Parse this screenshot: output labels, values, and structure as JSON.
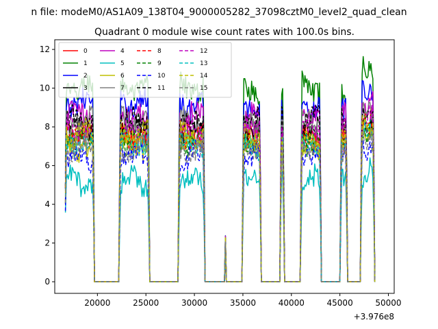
{
  "figure": {
    "suptitle": "n file: modeM0/AS1A09_138T04_9000005282_37098cztM0_level2_quad_clean",
    "title": "Quadrant 0 module wise count rates with 100.0s bins."
  },
  "chart_data": {
    "type": "line",
    "title": "Quadrant 0 module wise count rates with 100.0s bins.",
    "xlabel": "",
    "ylabel": "",
    "x_offset_label": "+3.976e8",
    "xlim": [
      15600,
      50600
    ],
    "ylim": [
      -0.6,
      12.5
    ],
    "xticks": [
      20000,
      25000,
      30000,
      35000,
      40000,
      45000,
      50000
    ],
    "yticks": [
      0,
      2,
      4,
      6,
      8,
      10,
      12
    ],
    "grid": false,
    "legend_position": "top-left",
    "legend_columns": 4,
    "segments": [
      [
        16700,
        19600
      ],
      [
        22300,
        25300
      ],
      [
        28400,
        31000
      ],
      [
        35000,
        36800
      ],
      [
        38900,
        39200
      ],
      [
        41000,
        43000
      ],
      [
        45100,
        45700
      ],
      [
        47200,
        48500
      ]
    ],
    "spike": {
      "x": 33200,
      "mean": 2.2
    },
    "series": [
      {
        "name": "0",
        "color": "#ff0000",
        "dash": "solid",
        "mean": 7.6
      },
      {
        "name": "1",
        "color": "#008000",
        "dash": "solid",
        "mean": 10.0
      },
      {
        "name": "2",
        "color": "#0000ff",
        "dash": "solid",
        "mean": 9.2
      },
      {
        "name": "3",
        "color": "#000000",
        "dash": "solid",
        "mean": 7.9
      },
      {
        "name": "4",
        "color": "#bf00bf",
        "dash": "solid",
        "mean": 8.6
      },
      {
        "name": "5",
        "color": "#00bfbf",
        "dash": "solid",
        "mean": 5.2
      },
      {
        "name": "6",
        "color": "#bfbf00",
        "dash": "solid",
        "mean": 7.0
      },
      {
        "name": "7",
        "color": "#808080",
        "dash": "solid",
        "mean": 8.2
      },
      {
        "name": "8",
        "color": "#ff0000",
        "dash": "dashed",
        "mean": 7.5
      },
      {
        "name": "9",
        "color": "#008000",
        "dash": "dashed",
        "mean": 7.3
      },
      {
        "name": "10",
        "color": "#0000ff",
        "dash": "dashed",
        "mean": 6.5
      },
      {
        "name": "11",
        "color": "#000000",
        "dash": "dashed",
        "mean": 8.3
      },
      {
        "name": "12",
        "color": "#bf00bf",
        "dash": "dashed",
        "mean": 7.8
      },
      {
        "name": "13",
        "color": "#00bfbf",
        "dash": "dashed",
        "mean": 7.1
      },
      {
        "name": "14",
        "color": "#bfbf00",
        "dash": "dashed",
        "mean": 7.6
      },
      {
        "name": "15",
        "color": "#808080",
        "dash": "dashed",
        "mean": 6.9
      }
    ]
  }
}
